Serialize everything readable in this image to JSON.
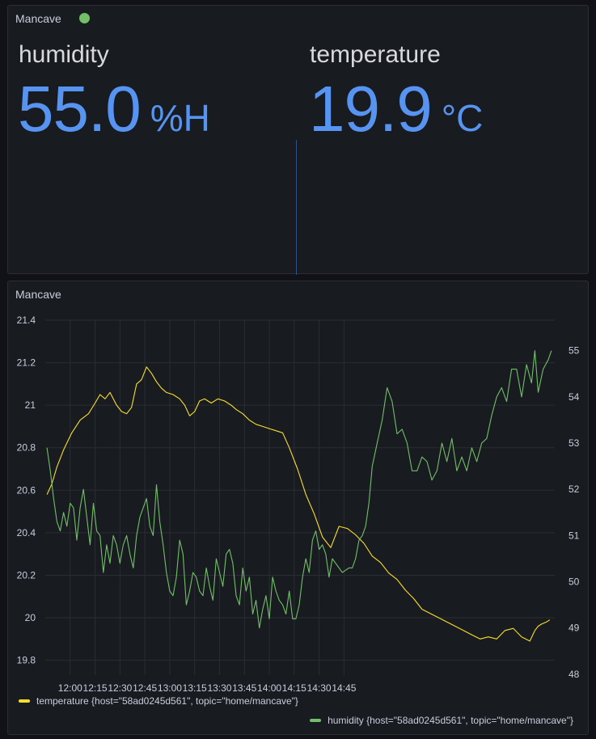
{
  "stats_panel": {
    "title": "Mancave",
    "status_color": "#73bf69",
    "humidity": {
      "label": "humidity",
      "value": "55.0",
      "unit": "%H"
    },
    "temperature": {
      "label": "temperature",
      "value": "19.9",
      "unit": "°C"
    }
  },
  "graph_panel": {
    "title": "Mancave"
  },
  "chart_data": {
    "type": "line",
    "title": "Mancave",
    "xlabel": "",
    "ylabel": "",
    "x_ticks": [
      "12:00",
      "12:15",
      "12:30",
      "12:45",
      "13:00",
      "13:15",
      "13:30",
      "13:45",
      "14:00",
      "14:15",
      "14:30",
      "14:45"
    ],
    "y_left_ticks": [
      "21.4",
      "21.2",
      "21",
      "20.8",
      "20.6",
      "20.4",
      "20.2",
      "20",
      "19.8"
    ],
    "y_right_ticks": [
      "55",
      "54",
      "53",
      "52",
      "51",
      "50",
      "49",
      "48"
    ],
    "xlim_minutes": [
      705,
      1012
    ],
    "ylim_left": [
      19.73,
      21.4
    ],
    "ylim_right": [
      47.98,
      55.66
    ],
    "grid": true,
    "legend_position": "bottom-left",
    "series": [
      {
        "name": "temperature {host=\"58ad0245d561\", topic=\"home/mancave\"}",
        "axis": "left",
        "color": "#fade2a",
        "x_minutes": [
          706,
          709,
          712,
          716,
          721,
          726,
          731,
          735,
          738,
          741,
          744,
          748,
          751,
          754,
          757,
          760,
          763,
          766,
          769,
          772,
          775,
          778,
          782,
          786,
          789,
          792,
          795,
          798,
          801,
          805,
          809,
          813,
          817,
          820,
          824,
          828,
          832,
          836,
          840,
          844,
          848,
          852,
          857,
          862,
          867,
          872,
          877,
          882,
          887,
          892,
          897,
          902,
          907,
          912,
          917,
          922,
          927,
          932,
          937,
          942,
          947,
          952,
          957,
          962,
          967,
          972,
          977,
          982,
          987,
          992,
          997,
          1000,
          1002,
          1004,
          1007,
          1009
        ],
        "values": [
          20.58,
          20.63,
          20.71,
          20.79,
          20.87,
          20.93,
          20.96,
          21.01,
          21.05,
          21.03,
          21.06,
          21.0,
          20.97,
          20.96,
          20.99,
          21.1,
          21.12,
          21.18,
          21.15,
          21.11,
          21.08,
          21.06,
          21.05,
          21.03,
          21.0,
          20.95,
          20.97,
          21.02,
          21.03,
          21.01,
          21.03,
          21.02,
          21.0,
          20.98,
          20.96,
          20.93,
          20.91,
          20.9,
          20.89,
          20.88,
          20.87,
          20.8,
          20.7,
          20.58,
          20.49,
          20.38,
          20.33,
          20.43,
          20.42,
          20.39,
          20.35,
          20.29,
          20.26,
          20.21,
          20.18,
          20.13,
          20.09,
          20.04,
          20.02,
          20.0,
          19.98,
          19.96,
          19.94,
          19.92,
          19.9,
          19.91,
          19.9,
          19.94,
          19.95,
          19.91,
          19.89,
          19.94,
          19.96,
          19.97,
          19.98,
          19.99
        ]
      },
      {
        "name": "humidity {host=\"58ad0245d561\", topic=\"home/mancave\"}",
        "axis": "right",
        "color": "#73bf69",
        "x_minutes": [
          706,
          708,
          710,
          712,
          714,
          716,
          718,
          720,
          722,
          724,
          726,
          728,
          730,
          732,
          734,
          736,
          738,
          740,
          742,
          744,
          746,
          748,
          750,
          752,
          754,
          756,
          758,
          760,
          762,
          764,
          766,
          768,
          770,
          772,
          774,
          776,
          778,
          780,
          782,
          784,
          786,
          788,
          790,
          792,
          794,
          796,
          798,
          800,
          802,
          804,
          806,
          808,
          810,
          812,
          814,
          816,
          818,
          820,
          822,
          824,
          826,
          828,
          830,
          832,
          834,
          836,
          838,
          840,
          842,
          844,
          846,
          848,
          850,
          852,
          854,
          856,
          858,
          860,
          862,
          864,
          866,
          868,
          870,
          872,
          874,
          876,
          878,
          880,
          884,
          888,
          890,
          892,
          894,
          896,
          898,
          900,
          902,
          905,
          908,
          911,
          914,
          917,
          920,
          923,
          926,
          929,
          932,
          935,
          938,
          941,
          944,
          947,
          950,
          953,
          956,
          959,
          962,
          965,
          968,
          971,
          974,
          977,
          980,
          983,
          986,
          989,
          992,
          995,
          998,
          1000,
          1002,
          1005,
          1008,
          1010
        ],
        "values": [
          52.9,
          52.4,
          51.8,
          51.3,
          51.1,
          51.5,
          51.2,
          51.7,
          51.6,
          50.9,
          51.6,
          52.0,
          51.4,
          50.8,
          51.7,
          51.1,
          51.0,
          50.2,
          50.8,
          50.4,
          51.0,
          50.8,
          50.4,
          50.8,
          51.0,
          50.6,
          50.3,
          51.0,
          51.4,
          51.6,
          51.8,
          51.2,
          51.0,
          52.1,
          51.3,
          50.8,
          50.2,
          49.8,
          49.7,
          50.1,
          50.9,
          50.6,
          49.5,
          49.8,
          50.2,
          50.1,
          49.8,
          49.7,
          50.3,
          49.9,
          49.6,
          50.5,
          50.2,
          49.9,
          50.6,
          50.7,
          50.4,
          49.7,
          49.5,
          50.3,
          49.8,
          50.1,
          49.3,
          49.6,
          49.0,
          49.4,
          49.7,
          49.2,
          50.1,
          49.8,
          49.6,
          49.5,
          49.3,
          49.8,
          49.2,
          49.2,
          49.5,
          50.1,
          50.5,
          50.2,
          50.9,
          51.1,
          50.7,
          50.8,
          50.6,
          50.1,
          50.5,
          50.4,
          50.2,
          50.3,
          50.3,
          50.5,
          50.9,
          51.0,
          51.2,
          51.7,
          52.5,
          53.0,
          53.5,
          54.2,
          53.9,
          53.2,
          53.3,
          53.0,
          52.4,
          52.4,
          52.7,
          52.6,
          52.2,
          52.4,
          53.0,
          52.6,
          53.1,
          52.4,
          52.7,
          52.4,
          52.9,
          52.6,
          53.0,
          53.1,
          53.6,
          54.0,
          54.2,
          53.9,
          54.6,
          54.6,
          54.0,
          54.7,
          54.3,
          55.0,
          54.1,
          54.6,
          54.8,
          55.0
        ]
      }
    ]
  }
}
